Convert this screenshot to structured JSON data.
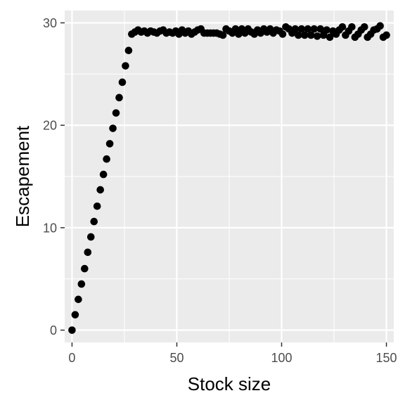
{
  "chart_data": {
    "type": "scatter",
    "title": "",
    "xlabel": "Stock size",
    "ylabel": "Escapement",
    "xlim": [
      -3.5,
      153.5
    ],
    "ylim": [
      -1.2,
      31.2
    ],
    "x_ticks": [
      0,
      50,
      100,
      150
    ],
    "x_tick_labels": [
      "0",
      "50",
      "100",
      "150"
    ],
    "y_ticks": [
      0,
      10,
      20,
      30
    ],
    "y_tick_labels": [
      "0",
      "10",
      "20",
      "30"
    ],
    "grid": true,
    "legend": "none",
    "colors": {
      "panel_background": "#ebebeb",
      "grid_major": "#ffffff",
      "point": "#000000",
      "tick_label": "#4d4d4d",
      "axis_title": "#000000"
    },
    "series": [
      {
        "points": [
          [
            0,
            0.0
          ],
          [
            1.5,
            1.5
          ],
          [
            3.0,
            3.0
          ],
          [
            4.5,
            4.5
          ],
          [
            6.0,
            6.0
          ],
          [
            7.5,
            7.6
          ],
          [
            9.0,
            9.1
          ],
          [
            10.5,
            10.6
          ],
          [
            12.0,
            12.1
          ],
          [
            13.5,
            13.7
          ],
          [
            15.0,
            15.2
          ],
          [
            16.5,
            16.7
          ],
          [
            18.0,
            18.2
          ],
          [
            19.5,
            19.7
          ],
          [
            21.0,
            21.2
          ],
          [
            22.5,
            22.7
          ],
          [
            24.0,
            24.2
          ],
          [
            25.5,
            25.8
          ],
          [
            27.0,
            27.3
          ],
          [
            28.5,
            28.9
          ],
          [
            30.0,
            29.1
          ],
          [
            31.5,
            29.3
          ],
          [
            33.0,
            29.1
          ],
          [
            34.5,
            29.2
          ],
          [
            36.0,
            29.0
          ],
          [
            37.5,
            29.2
          ],
          [
            39.0,
            29.1
          ],
          [
            40.5,
            29.0
          ],
          [
            42.0,
            29.2
          ],
          [
            43.5,
            29.3
          ],
          [
            45.0,
            29.0
          ],
          [
            46.5,
            29.1
          ],
          [
            48.0,
            29.0
          ],
          [
            49.5,
            29.2
          ],
          [
            51.0,
            28.9
          ],
          [
            52.5,
            29.3
          ],
          [
            54.0,
            29.0
          ],
          [
            55.5,
            29.2
          ],
          [
            57.0,
            28.9
          ],
          [
            58.5,
            29.1
          ],
          [
            60.0,
            29.3
          ],
          [
            61.5,
            29.4
          ],
          [
            63.0,
            29.0
          ],
          [
            64.5,
            29.0
          ],
          [
            66.0,
            29.0
          ],
          [
            67.5,
            29.0
          ],
          [
            69.0,
            29.0
          ],
          [
            70.5,
            28.9
          ],
          [
            72.0,
            28.8
          ],
          [
            73.5,
            29.4
          ],
          [
            75.0,
            29.2
          ],
          [
            76.5,
            29.0
          ],
          [
            78.0,
            29.4
          ],
          [
            79.5,
            28.9
          ],
          [
            81.0,
            29.4
          ],
          [
            82.5,
            29.0
          ],
          [
            84.0,
            29.4
          ],
          [
            85.5,
            29.1
          ],
          [
            87.0,
            28.9
          ],
          [
            88.5,
            29.3
          ],
          [
            90.0,
            29.0
          ],
          [
            91.5,
            29.4
          ],
          [
            93.0,
            29.1
          ],
          [
            94.5,
            29.4
          ],
          [
            96.0,
            29.0
          ],
          [
            97.5,
            29.3
          ],
          [
            99.0,
            29.2
          ],
          [
            100.5,
            28.9
          ],
          [
            102.0,
            29.6
          ],
          [
            103.5,
            29.4
          ],
          [
            105.0,
            29.0
          ],
          [
            106.5,
            29.4
          ],
          [
            108.0,
            28.8
          ],
          [
            109.5,
            29.4
          ],
          [
            111.0,
            28.8
          ],
          [
            112.5,
            29.4
          ],
          [
            114.0,
            28.8
          ],
          [
            115.5,
            29.4
          ],
          [
            117.0,
            28.7
          ],
          [
            118.5,
            29.4
          ],
          [
            120.0,
            28.8
          ],
          [
            121.5,
            29.3
          ],
          [
            123.0,
            28.6
          ],
          [
            124.5,
            29.2
          ],
          [
            126.0,
            28.9
          ],
          [
            127.5,
            29.3
          ],
          [
            129.0,
            29.6
          ],
          [
            130.5,
            28.8
          ],
          [
            132.0,
            29.2
          ],
          [
            133.5,
            29.6
          ],
          [
            135.0,
            28.6
          ],
          [
            136.5,
            28.9
          ],
          [
            138.0,
            29.3
          ],
          [
            139.5,
            29.6
          ],
          [
            141.0,
            28.6
          ],
          [
            142.5,
            28.9
          ],
          [
            144.0,
            29.3
          ],
          [
            145.5,
            29.4
          ],
          [
            147.0,
            29.7
          ],
          [
            148.5,
            28.6
          ],
          [
            150.0,
            28.8
          ]
        ]
      }
    ]
  }
}
